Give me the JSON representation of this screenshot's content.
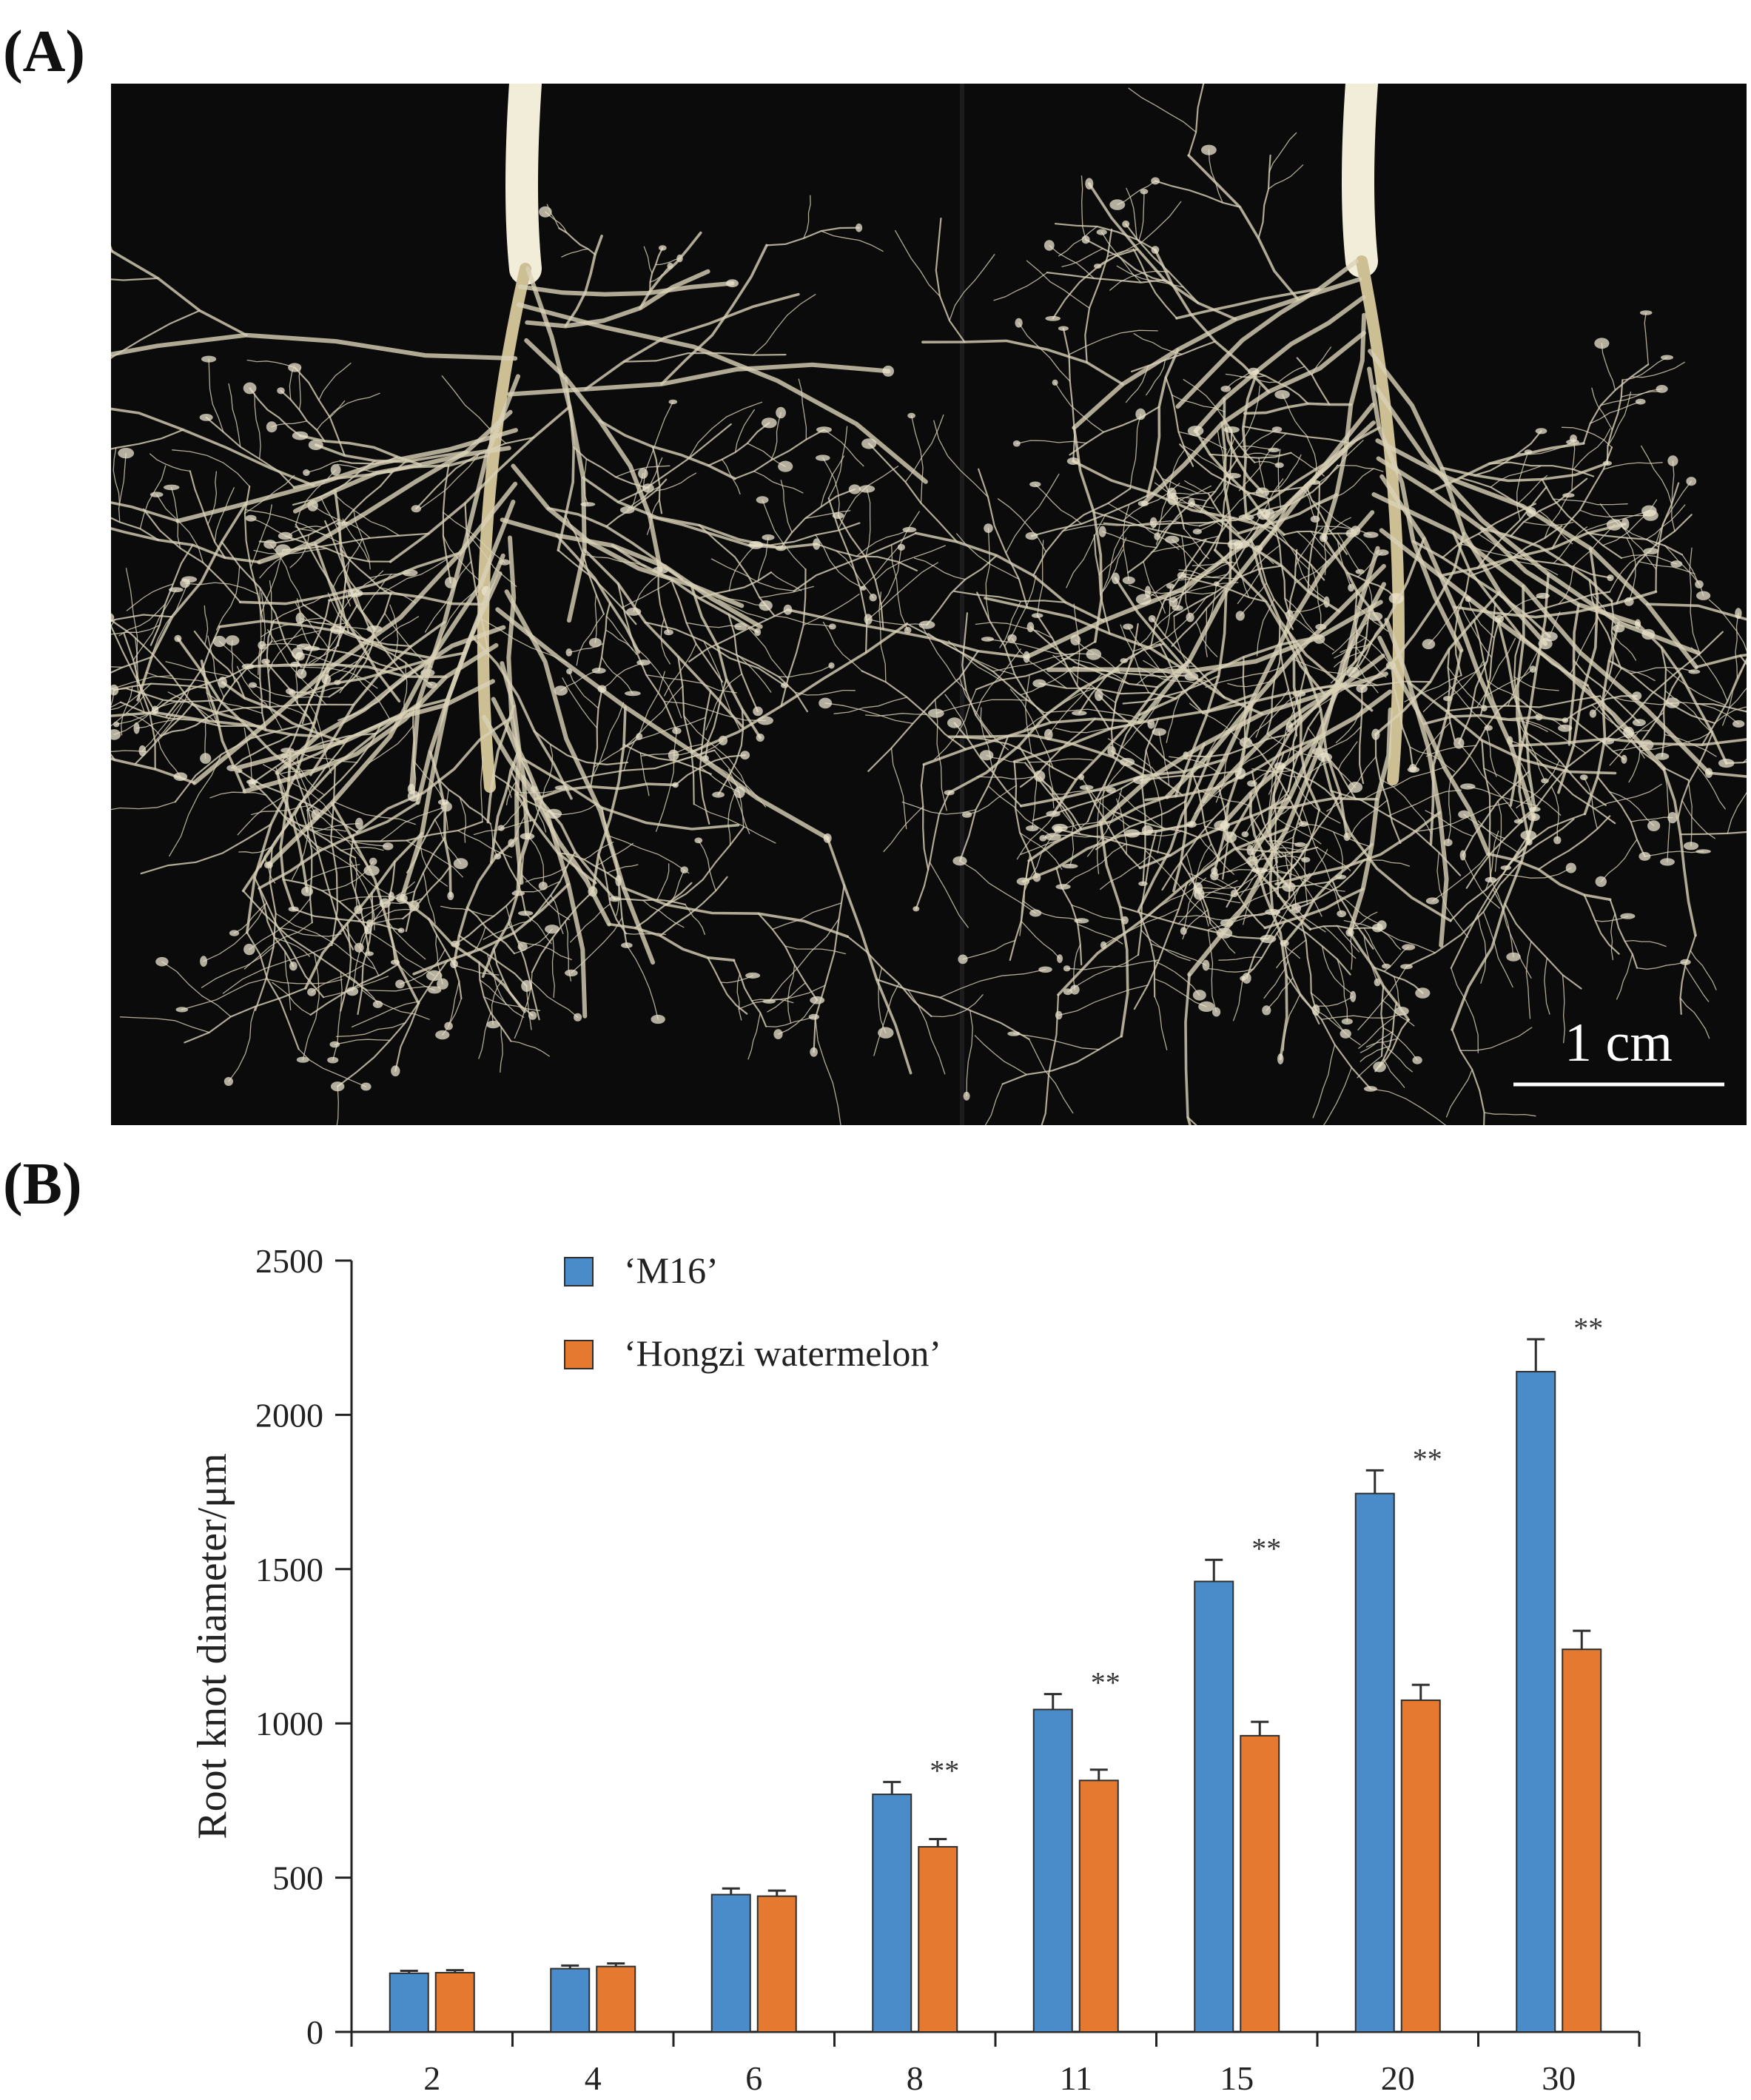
{
  "panels": {
    "a_label": "(A)",
    "b_label": "(B)"
  },
  "photo": {
    "scale_bar_label": "1 cm"
  },
  "colors": {
    "m16": "#4a8cc9",
    "hongzi": "#e5792f",
    "photo_background": "#0b0b0c",
    "root": "#d9d2b8"
  },
  "chart_data": {
    "type": "bar",
    "categories": [
      "2",
      "4",
      "6",
      "8",
      "11",
      "15",
      "20",
      "30"
    ],
    "series": [
      {
        "name": "‘M16’",
        "values": [
          190,
          205,
          445,
          770,
          1045,
          1460,
          1745,
          2140
        ],
        "errors": [
          8,
          10,
          20,
          40,
          50,
          70,
          75,
          105
        ]
      },
      {
        "name": "‘Hongzi watermelon’",
        "values": [
          192,
          212,
          440,
          600,
          815,
          960,
          1075,
          1240
        ],
        "errors": [
          8,
          10,
          18,
          25,
          35,
          45,
          50,
          60
        ]
      }
    ],
    "significance": [
      "",
      "",
      "",
      "**",
      "**",
      "**",
      "**",
      "**"
    ],
    "ylabel": "Root knot diameter/μm",
    "xlabel": "",
    "ylim": [
      0,
      2500
    ],
    "yticks": [
      0,
      500,
      1000,
      1500,
      2000,
      2500
    ],
    "legend_position": "top-left"
  }
}
